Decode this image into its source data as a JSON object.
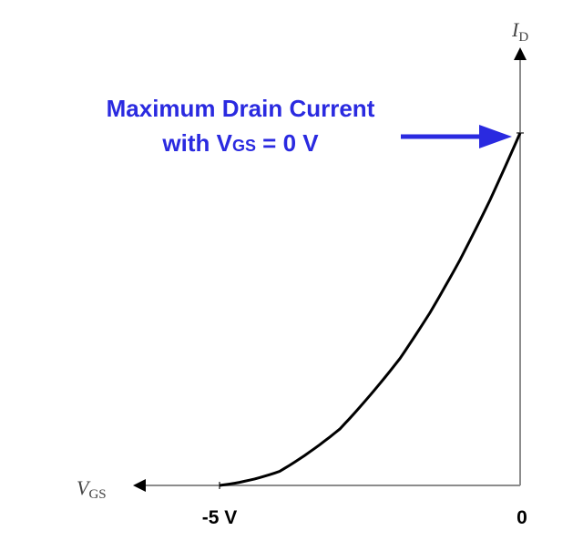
{
  "chart_data": {
    "type": "line",
    "x_axis": {
      "label_main": "V",
      "label_sub": "GS",
      "ticks": [
        "-5 V",
        "0"
      ],
      "range": [
        -5,
        0
      ],
      "direction": "negative-left"
    },
    "y_axis": {
      "label_main": "I",
      "label_sub": "D"
    },
    "curve": {
      "description_free": true,
      "x": [
        -5,
        -4,
        -3,
        -2,
        -1.5,
        -1,
        -0.5,
        0
      ],
      "y_fraction_of_max": [
        0,
        0.04,
        0.16,
        0.36,
        0.49,
        0.64,
        0.81,
        1.0
      ],
      "color": "#000000"
    },
    "annotation": {
      "line1": "Maximum Drain Current",
      "line2_prefix": "with V",
      "line2_sub": "GS",
      "line2_suffix": " = 0 V",
      "color": "#2a2ae0"
    },
    "grid": false,
    "legend": "none"
  }
}
